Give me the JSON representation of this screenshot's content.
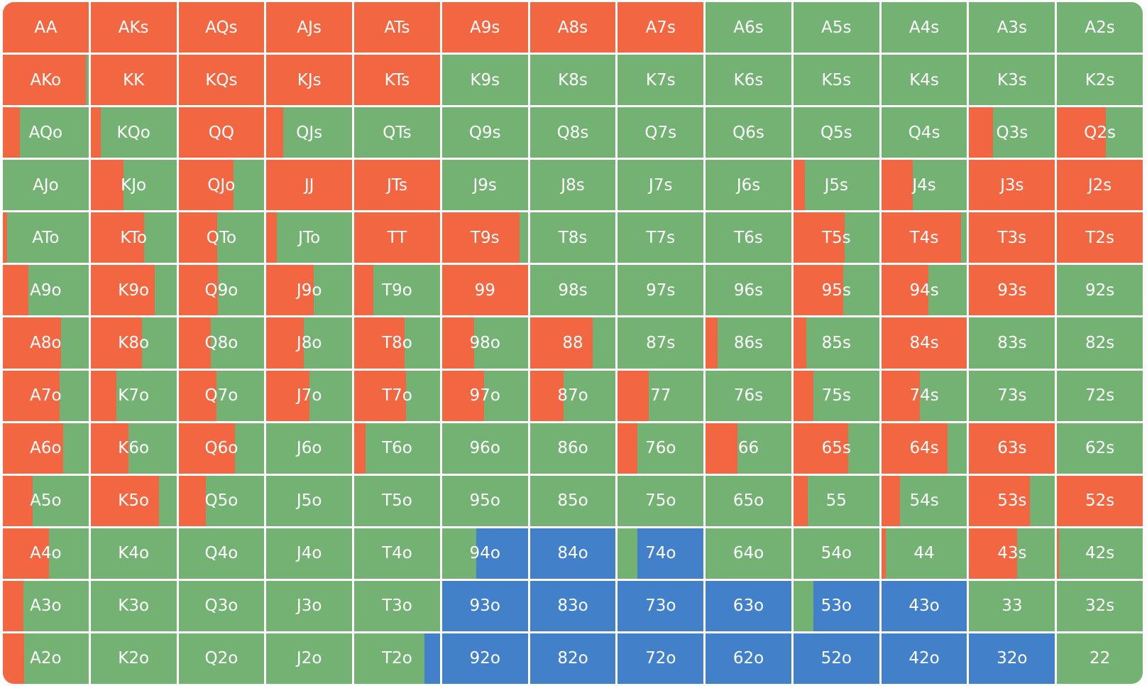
{
  "colors": {
    "raise": "#f26641",
    "call": "#74b273",
    "fold": "#4280c9"
  },
  "chart_data": {
    "type": "heatmap",
    "rows": [
      [
        {
          "hand": "AA",
          "r": 1
        },
        {
          "hand": "AKs",
          "r": 1
        },
        {
          "hand": "AQs",
          "r": 1
        },
        {
          "hand": "AJs",
          "r": 1
        },
        {
          "hand": "ATs",
          "r": 1
        },
        {
          "hand": "A9s",
          "r": 1
        },
        {
          "hand": "A8s",
          "r": 1
        },
        {
          "hand": "A7s",
          "r": 1
        },
        {
          "hand": "A6s",
          "r": 0
        },
        {
          "hand": "A5s",
          "r": 0
        },
        {
          "hand": "A4s",
          "r": 0
        },
        {
          "hand": "A3s",
          "r": 0
        },
        {
          "hand": "A2s",
          "r": 0
        }
      ],
      [
        {
          "hand": "AKo",
          "r": 0.97
        },
        {
          "hand": "KK",
          "r": 1
        },
        {
          "hand": "KQs",
          "r": 1
        },
        {
          "hand": "KJs",
          "r": 1
        },
        {
          "hand": "KTs",
          "r": 1
        },
        {
          "hand": "K9s",
          "r": 0
        },
        {
          "hand": "K8s",
          "r": 0
        },
        {
          "hand": "K7s",
          "r": 0
        },
        {
          "hand": "K6s",
          "r": 0
        },
        {
          "hand": "K5s",
          "r": 0
        },
        {
          "hand": "K4s",
          "r": 0
        },
        {
          "hand": "K3s",
          "r": 0
        },
        {
          "hand": "K2s",
          "r": 0
        }
      ],
      [
        {
          "hand": "AQo",
          "r": 0.2
        },
        {
          "hand": "KQo",
          "r": 0.12
        },
        {
          "hand": "QQ",
          "r": 1
        },
        {
          "hand": "QJs",
          "r": 0.2
        },
        {
          "hand": "QTs",
          "r": 0
        },
        {
          "hand": "Q9s",
          "r": 0
        },
        {
          "hand": "Q8s",
          "r": 0
        },
        {
          "hand": "Q7s",
          "r": 0
        },
        {
          "hand": "Q6s",
          "r": 0
        },
        {
          "hand": "Q5s",
          "r": 0
        },
        {
          "hand": "Q4s",
          "r": 0
        },
        {
          "hand": "Q3s",
          "r": 0.28
        },
        {
          "hand": "Q2s",
          "r": 0.57
        }
      ],
      [
        {
          "hand": "AJo",
          "r": 0
        },
        {
          "hand": "KJo",
          "r": 0.38
        },
        {
          "hand": "QJo",
          "r": 0.64
        },
        {
          "hand": "JJ",
          "r": 1
        },
        {
          "hand": "JTs",
          "r": 1
        },
        {
          "hand": "J9s",
          "r": 0
        },
        {
          "hand": "J8s",
          "r": 0
        },
        {
          "hand": "J7s",
          "r": 0
        },
        {
          "hand": "J6s",
          "r": 0
        },
        {
          "hand": "J5s",
          "r": 0.13
        },
        {
          "hand": "J4s",
          "r": 0.37
        },
        {
          "hand": "J3s",
          "r": 1
        },
        {
          "hand": "J2s",
          "r": 1
        }
      ],
      [
        {
          "hand": "ATo",
          "r": 0.05
        },
        {
          "hand": "KTo",
          "r": 0.62
        },
        {
          "hand": "QTo",
          "r": 0.45
        },
        {
          "hand": "JTo",
          "r": 0.12
        },
        {
          "hand": "TT",
          "r": 1
        },
        {
          "hand": "T9s",
          "r": 0.9
        },
        {
          "hand": "T8s",
          "r": 0
        },
        {
          "hand": "T7s",
          "r": 0
        },
        {
          "hand": "T6s",
          "r": 0
        },
        {
          "hand": "T5s",
          "r": 0.6
        },
        {
          "hand": "T4s",
          "r": 0.93
        },
        {
          "hand": "T3s",
          "r": 1
        },
        {
          "hand": "T2s",
          "r": 1
        }
      ],
      [
        {
          "hand": "A9o",
          "r": 0.3
        },
        {
          "hand": "K9o",
          "r": 0.75
        },
        {
          "hand": "Q9o",
          "r": 0.46
        },
        {
          "hand": "J9o",
          "r": 0.55
        },
        {
          "hand": "T9o",
          "r": 0.22
        },
        {
          "hand": "99",
          "r": 1
        },
        {
          "hand": "98s",
          "r": 0
        },
        {
          "hand": "97s",
          "r": 0
        },
        {
          "hand": "96s",
          "r": 0
        },
        {
          "hand": "95s",
          "r": 0.58
        },
        {
          "hand": "94s",
          "r": 0.55
        },
        {
          "hand": "93s",
          "r": 1
        },
        {
          "hand": "92s",
          "r": 0
        }
      ],
      [
        {
          "hand": "A8o",
          "r": 0.68
        },
        {
          "hand": "K8o",
          "r": 0.6
        },
        {
          "hand": "Q8o",
          "r": 0.38
        },
        {
          "hand": "J8o",
          "r": 0.44
        },
        {
          "hand": "T8o",
          "r": 0.59
        },
        {
          "hand": "98o",
          "r": 0.37
        },
        {
          "hand": "88",
          "r": 0.73
        },
        {
          "hand": "87s",
          "r": 0
        },
        {
          "hand": "86s",
          "r": 0.14
        },
        {
          "hand": "85s",
          "r": 0.15
        },
        {
          "hand": "84s",
          "r": 1
        },
        {
          "hand": "83s",
          "r": 0
        },
        {
          "hand": "82s",
          "r": 0
        }
      ],
      [
        {
          "hand": "A7o",
          "r": 0.66
        },
        {
          "hand": "K7o",
          "r": 0.3
        },
        {
          "hand": "Q7o",
          "r": 0.44
        },
        {
          "hand": "J7o",
          "r": 0.5
        },
        {
          "hand": "T7o",
          "r": 0.6
        },
        {
          "hand": "97o",
          "r": 0.49
        },
        {
          "hand": "87o",
          "r": 0.39
        },
        {
          "hand": "77",
          "r": 0.36
        },
        {
          "hand": "76s",
          "r": 0
        },
        {
          "hand": "75s",
          "r": 0.23
        },
        {
          "hand": "74s",
          "r": 0.45
        },
        {
          "hand": "73s",
          "r": 0
        },
        {
          "hand": "72s",
          "r": 0
        }
      ],
      [
        {
          "hand": "A6o",
          "r": 0.7
        },
        {
          "hand": "K6o",
          "r": 0.44
        },
        {
          "hand": "Q6o",
          "r": 0.66
        },
        {
          "hand": "J6o",
          "r": 0
        },
        {
          "hand": "T6o",
          "r": 0.13
        },
        {
          "hand": "96o",
          "r": 0
        },
        {
          "hand": "86o",
          "r": 0
        },
        {
          "hand": "76o",
          "r": 0.23
        },
        {
          "hand": "66",
          "r": 0.37
        },
        {
          "hand": "65s",
          "r": 0.64
        },
        {
          "hand": "64s",
          "r": 0.77
        },
        {
          "hand": "63s",
          "r": 1
        },
        {
          "hand": "62s",
          "r": 0
        }
      ],
      [
        {
          "hand": "A5o",
          "r": 0.35
        },
        {
          "hand": "K5o",
          "r": 0.8
        },
        {
          "hand": "Q5o",
          "r": 0.32
        },
        {
          "hand": "J5o",
          "r": 0
        },
        {
          "hand": "T5o",
          "r": 0
        },
        {
          "hand": "95o",
          "r": 0
        },
        {
          "hand": "85o",
          "r": 0
        },
        {
          "hand": "75o",
          "r": 0
        },
        {
          "hand": "65o",
          "r": 0
        },
        {
          "hand": "55",
          "r": 0.17
        },
        {
          "hand": "54s",
          "r": 0.22
        },
        {
          "hand": "53s",
          "r": 0.71
        },
        {
          "hand": "52s",
          "r": 1
        }
      ],
      [
        {
          "hand": "A4o",
          "r": 0.54
        },
        {
          "hand": "K4o",
          "r": 0
        },
        {
          "hand": "Q4o",
          "r": 0
        },
        {
          "hand": "J4o",
          "r": 0
        },
        {
          "hand": "T4o",
          "r": 0
        },
        {
          "hand": "94o",
          "r": 0,
          "f": 0.6
        },
        {
          "hand": "84o",
          "r": 0,
          "f": 1
        },
        {
          "hand": "74o",
          "r": 0,
          "f": 0.77
        },
        {
          "hand": "64o",
          "r": 0
        },
        {
          "hand": "54o",
          "r": 0
        },
        {
          "hand": "44",
          "r": 0.05
        },
        {
          "hand": "43s",
          "r": 0.56
        },
        {
          "hand": "42s",
          "r": 0.02
        }
      ],
      [
        {
          "hand": "A3o",
          "r": 0.24
        },
        {
          "hand": "K3o",
          "r": 0
        },
        {
          "hand": "Q3o",
          "r": 0
        },
        {
          "hand": "J3o",
          "r": 0
        },
        {
          "hand": "T3o",
          "r": 0
        },
        {
          "hand": "93o",
          "r": 0,
          "f": 1
        },
        {
          "hand": "83o",
          "r": 0,
          "f": 1
        },
        {
          "hand": "73o",
          "r": 0,
          "f": 1
        },
        {
          "hand": "63o",
          "r": 0,
          "f": 1
        },
        {
          "hand": "53o",
          "r": 0,
          "f": 0.77
        },
        {
          "hand": "43o",
          "r": 0,
          "f": 1
        },
        {
          "hand": "33",
          "r": 0
        },
        {
          "hand": "32s",
          "r": 0
        }
      ],
      [
        {
          "hand": "A2o",
          "r": 0.25
        },
        {
          "hand": "K2o",
          "r": 0
        },
        {
          "hand": "Q2o",
          "r": 0
        },
        {
          "hand": "J2o",
          "r": 0
        },
        {
          "hand": "T2o",
          "r": 0,
          "f": 0.18
        },
        {
          "hand": "92o",
          "r": 0,
          "f": 1
        },
        {
          "hand": "82o",
          "r": 0,
          "f": 1
        },
        {
          "hand": "72o",
          "r": 0,
          "f": 1
        },
        {
          "hand": "62o",
          "r": 0,
          "f": 1
        },
        {
          "hand": "52o",
          "r": 0,
          "f": 1
        },
        {
          "hand": "42o",
          "r": 0,
          "f": 1
        },
        {
          "hand": "32o",
          "r": 0,
          "f": 1
        },
        {
          "hand": "22",
          "r": 0
        }
      ]
    ]
  }
}
